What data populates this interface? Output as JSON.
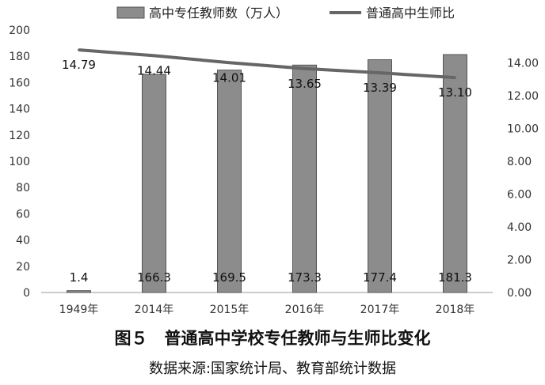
{
  "figure": {
    "title": "图５　普通高中学校专任教师与生师比变化",
    "source": "数据来源:国家统计局、教育部统计数据"
  },
  "chart_data": {
    "type": "bar+line",
    "categories": [
      "1949年",
      "2014年",
      "2015年",
      "2016年",
      "2017年",
      "2018年"
    ],
    "series": [
      {
        "name": "高中专任教师数（万人）",
        "type": "bar",
        "axis": "left",
        "values": [
          1.4,
          166.3,
          169.5,
          173.3,
          177.4,
          181.3
        ],
        "labels": [
          "1.4",
          "166.3",
          "169.5",
          "173.3",
          "177.4",
          "181.3"
        ],
        "color": "#8c8c8c"
      },
      {
        "name": "普通高中生师比",
        "type": "line",
        "axis": "right",
        "values": [
          14.79,
          14.44,
          14.01,
          13.65,
          13.39,
          13.1
        ],
        "labels": [
          "14.79",
          "14.44",
          "14.01",
          "13.65",
          "13.39",
          "13.10"
        ],
        "color": "#666666"
      }
    ],
    "y_left": {
      "min": 0,
      "max": 200,
      "ticks": [
        "0",
        "20",
        "40",
        "60",
        "80",
        "100",
        "120",
        "140",
        "160",
        "180",
        "200"
      ]
    },
    "y_right": {
      "min": 0,
      "max": 16,
      "ticks": [
        "0.00",
        "2.00",
        "4.00",
        "6.00",
        "8.00",
        "10.00",
        "12.00",
        "14.00"
      ]
    },
    "legend_position": "top",
    "grid": false
  }
}
